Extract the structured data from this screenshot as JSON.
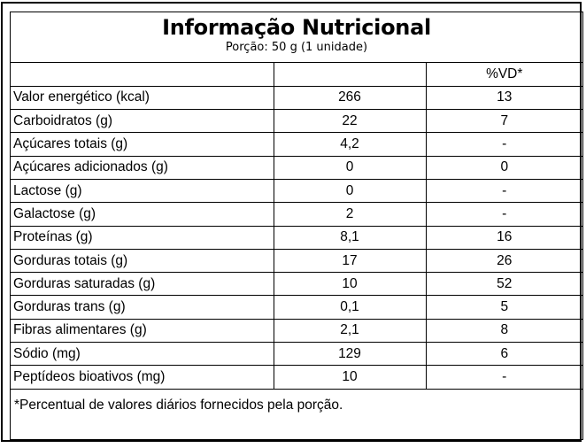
{
  "label": {
    "title": "Informação Nutricional",
    "serving": "Porção: 50 g (1 unidade)",
    "header_row": {
      "name": "",
      "amount": "",
      "dv": "%VD*"
    },
    "rows": [
      {
        "name": "Valor energético (kcal)",
        "amount": "266",
        "dv": "13"
      },
      {
        "name": "Carboidratos (g)",
        "amount": "22",
        "dv": "7"
      },
      {
        "name": "Açúcares totais (g)",
        "amount": "4,2",
        "dv": "-"
      },
      {
        "name": "Açúcares adicionados (g)",
        "amount": "0",
        "dv": "0"
      },
      {
        "name": "Lactose (g)",
        "amount": "0",
        "dv": "-"
      },
      {
        "name": "Galactose (g)",
        "amount": "2",
        "dv": "-"
      },
      {
        "name": "Proteínas (g)",
        "amount": "8,1",
        "dv": "16"
      },
      {
        "name": "Gorduras totais (g)",
        "amount": "17",
        "dv": "26"
      },
      {
        "name": "Gorduras saturadas (g)",
        "amount": "10",
        "dv": "52"
      },
      {
        "name": "Gorduras trans (g)",
        "amount": "0,1",
        "dv": "5"
      },
      {
        "name": "Fibras alimentares (g)",
        "amount": "2,1",
        "dv": "8"
      },
      {
        "name": "Sódio (mg)",
        "amount": "129",
        "dv": "6"
      },
      {
        "name": "Peptídeos bioativos (mg)",
        "amount": "10",
        "dv": "-"
      }
    ],
    "footnote": "*Percentual de valores diários fornecidos pela porção."
  }
}
